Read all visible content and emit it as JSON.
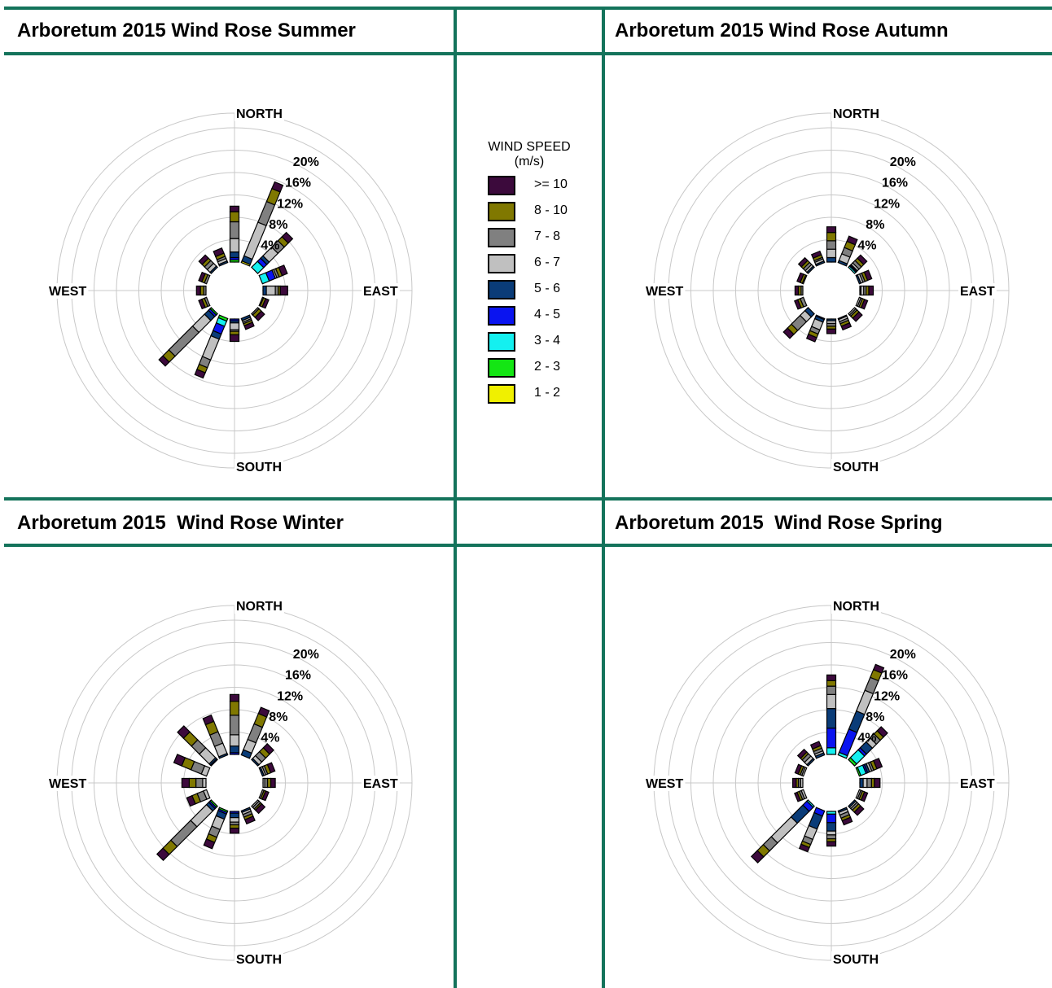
{
  "titles": {
    "summer": "Arboretum 2015 Wind Rose Summer",
    "autumn": "Arboretum 2015 Wind Rose Autumn",
    "winter": "Arboretum 2015  Wind Rose Winter",
    "spring": "Arboretum 2015  Wind Rose Spring"
  },
  "legend": {
    "title": "WIND SPEED",
    "unit": "(m/s)",
    "bins": [
      {
        "label": ">= 10",
        "color": "#3c0a3c"
      },
      {
        "label": "8 - 10",
        "color": "#807800"
      },
      {
        "label": "7 - 8",
        "color": "#808080"
      },
      {
        "label": "6 - 7",
        "color": "#c0c0c0"
      },
      {
        "label": "5 - 6",
        "color": "#0a3c78"
      },
      {
        "label": "4 - 5",
        "color": "#0a14f0"
      },
      {
        "label": "3 - 4",
        "color": "#14f0f0"
      },
      {
        "label": "2 - 3",
        "color": "#14e614"
      },
      {
        "label": "1 - 2",
        "color": "#f0f000"
      }
    ]
  },
  "compass": {
    "north": "NORTH",
    "south": "SOUTH",
    "east": "EAST",
    "west": "WEST"
  },
  "ring_labels": [
    "4%",
    "8%",
    "12%",
    "16%",
    "20%"
  ],
  "chart_data": [
    {
      "type": "wind_rose",
      "title": "Arboretum 2015 Wind Rose Summer",
      "directions_deg": [
        0,
        22.5,
        45,
        67.5,
        90,
        112.5,
        135,
        157.5,
        180,
        202.5,
        225,
        247.5,
        270,
        292.5,
        315,
        337.5
      ],
      "radial_max_pct": 20,
      "sectors": [
        [
          1.0,
          1.8,
          3.0,
          2.4,
          1.0,
          0.4,
          0,
          0.4,
          0
        ],
        [
          1.3,
          2.5,
          4.0,
          6.5,
          1.0,
          0,
          0,
          0,
          0.3
        ],
        [
          1.1,
          1.0,
          1.6,
          2.2,
          0.6,
          0.8,
          1.5,
          0,
          0
        ],
        [
          1.0,
          0.6,
          0.4,
          0.3,
          0,
          1.2,
          1.3,
          0,
          0
        ],
        [
          1.3,
          0.4,
          0.5,
          1.6,
          0.6,
          0,
          0,
          0,
          0
        ],
        [
          0.6,
          0.4,
          0.2,
          0,
          0,
          0,
          0,
          0,
          0
        ],
        [
          0.8,
          0.6,
          0.3,
          0,
          0,
          0,
          0,
          0,
          0
        ],
        [
          0.7,
          0.4,
          0.3,
          0.3,
          0.4,
          0,
          0,
          0,
          0
        ],
        [
          1.2,
          0.6,
          0.3,
          1.2,
          0.4,
          0.3,
          0,
          0,
          0
        ],
        [
          1.0,
          1.0,
          1.5,
          4.0,
          1.0,
          1.5,
          1.0,
          0.5,
          0
        ],
        [
          1.0,
          1.5,
          6.0,
          3.0,
          1.0,
          0.4,
          0,
          0.3,
          0
        ],
        [
          0.6,
          0.5,
          0.4,
          0,
          0,
          0,
          0,
          0,
          0
        ],
        [
          0.7,
          0.6,
          0.4,
          0,
          0,
          0,
          0,
          0,
          0
        ],
        [
          0.6,
          0.5,
          0.4,
          0,
          0,
          0,
          0,
          0,
          0
        ],
        [
          0.8,
          0.6,
          0.7,
          0.7,
          0.3,
          0,
          0,
          0,
          0
        ],
        [
          1.0,
          0.6,
          0.4,
          0.5,
          0.3,
          0,
          0,
          0,
          0
        ]
      ]
    },
    {
      "type": "wind_rose",
      "title": "Arboretum 2015 Wind Rose Autumn",
      "directions_deg": [
        0,
        22.5,
        45,
        67.5,
        90,
        112.5,
        135,
        157.5,
        180,
        202.5,
        225,
        247.5,
        270,
        292.5,
        315,
        337.5
      ],
      "radial_max_pct": 20,
      "sectors": [
        [
          1.0,
          1.5,
          1.5,
          1.5,
          0.8,
          0,
          0,
          0,
          0
        ],
        [
          1.0,
          1.2,
          1.2,
          1.3,
          0.4,
          0,
          0,
          0,
          0
        ],
        [
          0.8,
          0.6,
          0.6,
          0.4,
          0.2,
          0.2,
          0.3,
          0,
          0
        ],
        [
          0.8,
          0.5,
          0.4,
          0.4,
          0.3,
          0,
          0,
          0,
          0
        ],
        [
          0.8,
          0.5,
          0.4,
          0.5,
          0.2,
          0,
          0,
          0,
          0
        ],
        [
          0.6,
          0.4,
          0.3,
          0.3,
          0,
          0,
          0,
          0,
          0
        ],
        [
          0.8,
          0.5,
          0.3,
          0.3,
          0,
          0,
          0,
          0,
          0
        ],
        [
          0.7,
          0.5,
          0.4,
          0.4,
          0.2,
          0,
          0,
          0,
          0
        ],
        [
          0.8,
          0.5,
          0.5,
          0.5,
          0.3,
          0,
          0,
          0,
          0
        ],
        [
          0.8,
          0.7,
          0.8,
          1.5,
          0.5,
          0.2,
          0,
          0,
          0
        ],
        [
          1.0,
          1.0,
          2.2,
          1.2,
          0.8,
          0,
          0,
          0,
          0
        ],
        [
          0.6,
          0.5,
          0.6,
          0,
          0,
          0,
          0,
          0,
          0
        ],
        [
          0.6,
          0.5,
          0.3,
          0,
          0,
          0,
          0,
          0,
          0
        ],
        [
          0.6,
          0.4,
          0.2,
          0,
          0,
          0,
          0,
          0,
          0
        ],
        [
          0.7,
          0.5,
          0.5,
          0.4,
          0.3,
          0,
          0,
          0,
          0
        ],
        [
          0.7,
          0.5,
          0.3,
          0.4,
          0.3,
          0,
          0,
          0,
          0
        ]
      ]
    },
    {
      "type": "wind_rose",
      "title": "Arboretum 2015  Wind Rose Winter",
      "directions_deg": [
        0,
        22.5,
        45,
        67.5,
        90,
        112.5,
        135,
        157.5,
        180,
        202.5,
        225,
        247.5,
        270,
        292.5,
        315,
        337.5
      ],
      "radial_max_pct": 20,
      "sectors": [
        [
          1.2,
          2.5,
          3.5,
          2.0,
          1.2,
          0.3,
          0,
          0,
          0
        ],
        [
          1.2,
          2.0,
          3.0,
          2.0,
          1.0,
          0,
          0,
          0,
          0
        ],
        [
          1.0,
          1.0,
          1.0,
          0.7,
          0.3,
          0,
          0,
          0,
          0
        ],
        [
          0.8,
          0.6,
          0.4,
          0.3,
          0.3,
          0,
          0,
          0,
          0
        ],
        [
          0.8,
          0.6,
          0.5,
          0.3,
          0,
          0,
          0,
          0,
          0
        ],
        [
          0.6,
          0.3,
          0.3,
          0,
          0,
          0,
          0,
          0,
          0
        ],
        [
          0.8,
          0.3,
          0.4,
          0.3,
          0,
          0,
          0,
          0,
          0
        ],
        [
          0.8,
          0.5,
          0.5,
          0.4,
          0.3,
          0,
          0,
          0,
          0
        ],
        [
          0.9,
          0.6,
          0.5,
          0.8,
          0.8,
          0.3,
          0,
          0,
          0
        ],
        [
          1.2,
          1.0,
          1.5,
          2.0,
          1.0,
          0.3,
          0,
          0.3,
          0
        ],
        [
          1.5,
          2.0,
          5.0,
          4.0,
          0.6,
          0.3,
          0,
          0.3,
          0
        ],
        [
          1.0,
          1.0,
          1.2,
          0.6,
          0,
          0,
          0,
          0,
          0
        ],
        [
          1.3,
          1.2,
          1.2,
          0.6,
          0,
          0,
          0,
          0,
          0
        ],
        [
          1.5,
          1.8,
          2.0,
          1.0,
          0,
          0,
          0,
          0,
          0
        ],
        [
          1.5,
          2.0,
          2.0,
          2.5,
          0.3,
          0.2,
          0,
          0,
          0
        ],
        [
          1.2,
          2.0,
          2.2,
          2.0,
          0.3,
          0,
          0,
          0,
          0
        ]
      ]
    },
    {
      "type": "wind_rose",
      "title": "Arboretum 2015  Wind Rose Spring",
      "directions_deg": [
        0,
        22.5,
        45,
        67.5,
        90,
        112.5,
        135,
        157.5,
        180,
        202.5,
        225,
        247.5,
        270,
        292.5,
        315,
        337.5
      ],
      "radial_max_pct": 20,
      "sectors": [
        [
          1.0,
          1.0,
          1.5,
          2.5,
          3.5,
          3.5,
          1.2,
          0,
          0
        ],
        [
          1.0,
          1.5,
          2.5,
          4.0,
          3.5,
          4.5,
          0.5,
          0,
          0
        ],
        [
          1.0,
          0.8,
          1.0,
          1.0,
          1.5,
          0.5,
          2.0,
          0.5,
          0
        ],
        [
          1.0,
          0.6,
          0.4,
          0.4,
          0.4,
          0.3,
          1.0,
          0.3,
          0
        ],
        [
          1.0,
          0.5,
          0.8,
          0.7,
          0.6,
          0,
          0,
          0,
          0
        ],
        [
          0.6,
          0.4,
          0.3,
          0.3,
          0,
          0,
          0,
          0,
          0
        ],
        [
          0.8,
          0.5,
          0.4,
          0.3,
          0.3,
          0,
          0,
          0,
          0
        ],
        [
          0.8,
          0.5,
          0.6,
          0.5,
          0.3,
          0,
          0,
          0,
          0
        ],
        [
          0.8,
          0.5,
          0.7,
          0.7,
          1.5,
          1.5,
          0.5,
          0,
          0
        ],
        [
          0.8,
          0.6,
          1.0,
          2.0,
          2.5,
          1.0,
          0,
          0,
          0
        ],
        [
          1.5,
          1.5,
          2.0,
          5.0,
          3.0,
          1.0,
          0.3,
          0,
          0
        ],
        [
          0.5,
          0.4,
          0.4,
          0.4,
          0,
          0,
          0,
          0,
          0
        ],
        [
          0.6,
          0.4,
          0.4,
          0.4,
          0,
          0,
          0,
          0,
          0
        ],
        [
          0.6,
          0.4,
          0.3,
          0.3,
          0,
          0,
          0,
          0,
          0
        ],
        [
          0.7,
          0.4,
          0.6,
          0.6,
          0.3,
          0,
          0,
          0,
          0
        ],
        [
          0.8,
          0.5,
          0.5,
          0.4,
          0.4,
          0,
          0,
          0,
          0
        ]
      ]
    }
  ]
}
